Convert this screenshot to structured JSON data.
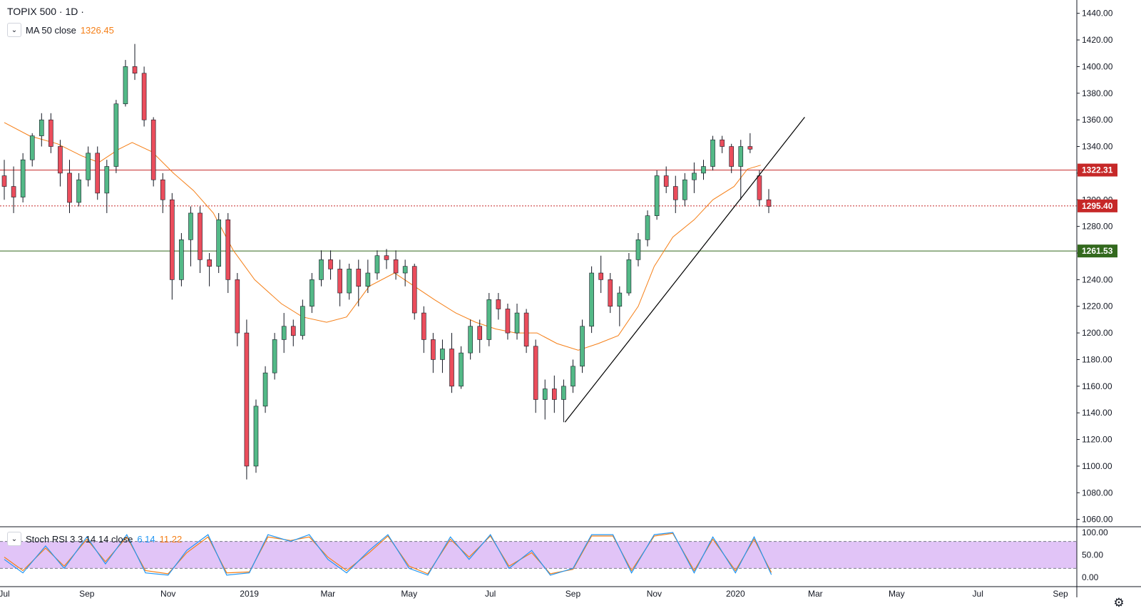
{
  "header": {
    "title": "TOPIX 500 · 1D ·",
    "ma_label": "MA 50 close",
    "ma_value": "1326.45",
    "stoch_label": "Stoch RSI 3 3 14 14 close",
    "stoch_k": "6.14",
    "stoch_d": "11.22"
  },
  "colors": {
    "up": "#53b987",
    "down": "#eb4d5c",
    "ma": "#f57f17",
    "resistance": "#c62828",
    "support": "#33691e",
    "trend": "#000000",
    "stoch_k": "#2196f3",
    "stoch_d": "#f57f17",
    "stoch_band": "#e1c4f7"
  },
  "icons": {
    "collapse": "chevron-down-icon",
    "settings": "gear-icon"
  },
  "chart_data": {
    "type": "candlestick",
    "symbol": "TOPIX 500",
    "interval": "1D",
    "price_ylim": [
      1055,
      1450
    ],
    "price_ticks": [
      "1060.00",
      "1080.00",
      "1100.00",
      "1120.00",
      "1140.00",
      "1160.00",
      "1180.00",
      "1200.00",
      "1220.00",
      "1240.00",
      "1260.00",
      "1280.00",
      "1300.00",
      "1320.00",
      "1340.00",
      "1360.00",
      "1380.00",
      "1400.00",
      "1420.00",
      "1440.00"
    ],
    "x_ticks": [
      "Jul",
      "Sep",
      "Nov",
      "2019",
      "Mar",
      "May",
      "Jul",
      "Sep",
      "Nov",
      "2020",
      "Mar",
      "May",
      "Jul",
      "Sep"
    ],
    "horizontal_lines": [
      {
        "price": 1322.31,
        "label": "1322.31",
        "style": "solid",
        "color": "#c62828"
      },
      {
        "price": 1295.4,
        "label": "1295.40",
        "style": "dotted",
        "color": "#c62828"
      },
      {
        "price": 1261.53,
        "label": "1261.53",
        "style": "solid",
        "color": "#33691e"
      }
    ],
    "trendline": {
      "from": {
        "date": "2019-08-26",
        "price": 1133
      },
      "to": {
        "date": "2020-02-22",
        "price": 1362
      }
    },
    "ma_path": [
      [
        "2018-07-01",
        1358
      ],
      [
        "2018-07-20",
        1348
      ],
      [
        "2018-08-10",
        1342
      ],
      [
        "2018-08-28",
        1333
      ],
      [
        "2018-09-10",
        1328
      ],
      [
        "2018-09-25",
        1338
      ],
      [
        "2018-10-05",
        1343
      ],
      [
        "2018-10-20",
        1336
      ],
      [
        "2018-11-05",
        1320
      ],
      [
        "2018-11-20",
        1307
      ],
      [
        "2018-12-05",
        1290
      ],
      [
        "2018-12-20",
        1262
      ],
      [
        "2019-01-05",
        1240
      ],
      [
        "2019-01-25",
        1222
      ],
      [
        "2019-02-10",
        1212
      ],
      [
        "2019-02-28",
        1208
      ],
      [
        "2019-03-15",
        1212
      ],
      [
        "2019-04-01",
        1235
      ],
      [
        "2019-04-20",
        1245
      ],
      [
        "2019-05-05",
        1235
      ],
      [
        "2019-05-20",
        1225
      ],
      [
        "2019-06-05",
        1215
      ],
      [
        "2019-06-20",
        1208
      ],
      [
        "2019-07-05",
        1203
      ],
      [
        "2019-07-20",
        1200
      ],
      [
        "2019-08-05",
        1200
      ],
      [
        "2019-08-20",
        1192
      ],
      [
        "2019-09-05",
        1187
      ],
      [
        "2019-09-20",
        1192
      ],
      [
        "2019-10-05",
        1198
      ],
      [
        "2019-10-20",
        1220
      ],
      [
        "2019-11-01",
        1250
      ],
      [
        "2019-11-15",
        1272
      ],
      [
        "2019-12-01",
        1285
      ],
      [
        "2019-12-15",
        1300
      ],
      [
        "2019-12-31",
        1310
      ],
      [
        "2020-01-10",
        1323
      ],
      [
        "2020-01-20",
        1326
      ]
    ],
    "candles": [
      [
        "2018-07-01",
        1318,
        1330,
        1300,
        1310
      ],
      [
        "2018-07-08",
        1310,
        1325,
        1290,
        1302
      ],
      [
        "2018-07-15",
        1302,
        1335,
        1298,
        1330
      ],
      [
        "2018-07-22",
        1330,
        1350,
        1325,
        1348
      ],
      [
        "2018-07-29",
        1348,
        1365,
        1340,
        1360
      ],
      [
        "2018-08-05",
        1360,
        1365,
        1335,
        1340
      ],
      [
        "2018-08-12",
        1340,
        1345,
        1310,
        1320
      ],
      [
        "2018-08-19",
        1320,
        1330,
        1290,
        1298
      ],
      [
        "2018-08-26",
        1298,
        1320,
        1295,
        1315
      ],
      [
        "2018-09-02",
        1315,
        1340,
        1310,
        1335
      ],
      [
        "2018-09-09",
        1335,
        1340,
        1300,
        1305
      ],
      [
        "2018-09-16",
        1305,
        1330,
        1290,
        1325
      ],
      [
        "2018-09-23",
        1325,
        1375,
        1320,
        1372
      ],
      [
        "2018-09-30",
        1372,
        1405,
        1370,
        1400
      ],
      [
        "2018-10-07",
        1400,
        1417,
        1390,
        1395
      ],
      [
        "2018-10-14",
        1395,
        1400,
        1355,
        1360
      ],
      [
        "2018-10-21",
        1360,
        1362,
        1310,
        1315
      ],
      [
        "2018-10-28",
        1315,
        1320,
        1290,
        1300
      ],
      [
        "2018-11-04",
        1300,
        1305,
        1225,
        1240
      ],
      [
        "2018-11-11",
        1240,
        1275,
        1235,
        1270
      ],
      [
        "2018-11-18",
        1270,
        1295,
        1250,
        1290
      ],
      [
        "2018-11-25",
        1290,
        1295,
        1245,
        1255
      ],
      [
        "2018-12-02",
        1255,
        1260,
        1235,
        1250
      ],
      [
        "2018-12-09",
        1250,
        1290,
        1245,
        1285
      ],
      [
        "2018-12-16",
        1285,
        1290,
        1230,
        1240
      ],
      [
        "2018-12-23",
        1240,
        1245,
        1190,
        1200
      ],
      [
        "2018-12-30",
        1200,
        1210,
        1090,
        1100
      ],
      [
        "2019-01-06",
        1100,
        1150,
        1095,
        1145
      ],
      [
        "2019-01-13",
        1145,
        1175,
        1140,
        1170
      ],
      [
        "2019-01-20",
        1170,
        1200,
        1165,
        1195
      ],
      [
        "2019-01-27",
        1195,
        1215,
        1185,
        1205
      ],
      [
        "2019-02-03",
        1205,
        1210,
        1190,
        1198
      ],
      [
        "2019-02-10",
        1198,
        1225,
        1195,
        1220
      ],
      [
        "2019-02-17",
        1220,
        1245,
        1215,
        1240
      ],
      [
        "2019-02-24",
        1240,
        1262,
        1235,
        1255
      ],
      [
        "2019-03-03",
        1255,
        1262,
        1240,
        1248
      ],
      [
        "2019-03-10",
        1248,
        1255,
        1220,
        1230
      ],
      [
        "2019-03-17",
        1230,
        1252,
        1225,
        1248
      ],
      [
        "2019-03-24",
        1248,
        1255,
        1220,
        1235
      ],
      [
        "2019-03-31",
        1235,
        1255,
        1230,
        1245
      ],
      [
        "2019-04-07",
        1245,
        1262,
        1240,
        1258
      ],
      [
        "2019-04-14",
        1258,
        1263,
        1248,
        1255
      ],
      [
        "2019-04-21",
        1255,
        1262,
        1240,
        1245
      ],
      [
        "2019-04-28",
        1245,
        1255,
        1235,
        1250
      ],
      [
        "2019-05-05",
        1250,
        1252,
        1210,
        1215
      ],
      [
        "2019-05-12",
        1215,
        1220,
        1185,
        1195
      ],
      [
        "2019-05-19",
        1195,
        1200,
        1170,
        1180
      ],
      [
        "2019-05-26",
        1180,
        1195,
        1170,
        1188
      ],
      [
        "2019-06-02",
        1188,
        1200,
        1155,
        1160
      ],
      [
        "2019-06-09",
        1160,
        1190,
        1158,
        1185
      ],
      [
        "2019-06-16",
        1185,
        1210,
        1180,
        1205
      ],
      [
        "2019-06-23",
        1205,
        1210,
        1185,
        1195
      ],
      [
        "2019-06-30",
        1195,
        1230,
        1190,
        1225
      ],
      [
        "2019-07-07",
        1225,
        1230,
        1210,
        1218
      ],
      [
        "2019-07-14",
        1218,
        1222,
        1195,
        1200
      ],
      [
        "2019-07-21",
        1200,
        1222,
        1195,
        1215
      ],
      [
        "2019-07-28",
        1215,
        1218,
        1185,
        1190
      ],
      [
        "2019-08-04",
        1190,
        1195,
        1140,
        1150
      ],
      [
        "2019-08-11",
        1150,
        1165,
        1135,
        1158
      ],
      [
        "2019-08-18",
        1158,
        1168,
        1140,
        1150
      ],
      [
        "2019-08-25",
        1150,
        1165,
        1133,
        1160
      ],
      [
        "2019-09-01",
        1160,
        1180,
        1155,
        1175
      ],
      [
        "2019-09-08",
        1175,
        1210,
        1170,
        1205
      ],
      [
        "2019-09-15",
        1205,
        1250,
        1200,
        1245
      ],
      [
        "2019-09-22",
        1245,
        1258,
        1230,
        1240
      ],
      [
        "2019-09-29",
        1240,
        1245,
        1215,
        1220
      ],
      [
        "2019-10-06",
        1220,
        1235,
        1205,
        1230
      ],
      [
        "2019-10-13",
        1230,
        1260,
        1228,
        1255
      ],
      [
        "2019-10-20",
        1255,
        1275,
        1250,
        1270
      ],
      [
        "2019-10-27",
        1270,
        1292,
        1265,
        1288
      ],
      [
        "2019-11-03",
        1288,
        1322,
        1285,
        1318
      ],
      [
        "2019-11-10",
        1318,
        1325,
        1305,
        1310
      ],
      [
        "2019-11-17",
        1310,
        1318,
        1290,
        1300
      ],
      [
        "2019-11-24",
        1300,
        1320,
        1295,
        1315
      ],
      [
        "2019-12-01",
        1315,
        1328,
        1305,
        1320
      ],
      [
        "2019-12-08",
        1320,
        1330,
        1315,
        1325
      ],
      [
        "2019-12-15",
        1325,
        1348,
        1322,
        1345
      ],
      [
        "2019-12-22",
        1345,
        1348,
        1335,
        1340
      ],
      [
        "2019-12-29",
        1340,
        1342,
        1320,
        1325
      ],
      [
        "2020-01-05",
        1325,
        1345,
        1300,
        1340
      ],
      [
        "2020-01-12",
        1340,
        1350,
        1335,
        1338
      ],
      [
        "2020-01-19",
        1318,
        1322,
        1295,
        1300
      ],
      [
        "2020-01-26",
        1300,
        1308,
        1290,
        1295
      ]
    ],
    "stoch_rsi": {
      "ylim": [
        0,
        100
      ],
      "ticks": [
        "0.00",
        "50.00",
        "100.00"
      ],
      "bands": [
        20,
        80
      ],
      "k_last": 6.14,
      "d_last": 11.22,
      "k": [
        [
          "2018-07-01",
          40
        ],
        [
          "2018-07-15",
          10
        ],
        [
          "2018-08-01",
          70
        ],
        [
          "2018-08-15",
          20
        ],
        [
          "2018-09-01",
          90
        ],
        [
          "2018-09-15",
          30
        ],
        [
          "2018-10-01",
          95
        ],
        [
          "2018-10-15",
          10
        ],
        [
          "2018-11-01",
          5
        ],
        [
          "2018-11-15",
          60
        ],
        [
          "2018-12-01",
          95
        ],
        [
          "2018-12-15",
          5
        ],
        [
          "2019-01-01",
          10
        ],
        [
          "2019-01-15",
          95
        ],
        [
          "2019-02-01",
          80
        ],
        [
          "2019-02-15",
          95
        ],
        [
          "2019-03-01",
          40
        ],
        [
          "2019-03-15",
          10
        ],
        [
          "2019-04-01",
          60
        ],
        [
          "2019-04-15",
          95
        ],
        [
          "2019-05-01",
          20
        ],
        [
          "2019-05-15",
          5
        ],
        [
          "2019-06-01",
          90
        ],
        [
          "2019-06-15",
          40
        ],
        [
          "2019-07-01",
          95
        ],
        [
          "2019-07-15",
          20
        ],
        [
          "2019-08-01",
          60
        ],
        [
          "2019-08-15",
          5
        ],
        [
          "2019-09-01",
          20
        ],
        [
          "2019-09-15",
          95
        ],
        [
          "2019-10-01",
          95
        ],
        [
          "2019-10-15",
          10
        ],
        [
          "2019-11-01",
          95
        ],
        [
          "2019-11-15",
          100
        ],
        [
          "2019-12-01",
          10
        ],
        [
          "2019-12-15",
          90
        ],
        [
          "2020-01-01",
          10
        ],
        [
          "2020-01-15",
          90
        ],
        [
          "2020-01-28",
          6
        ]
      ],
      "d": [
        [
          "2018-07-01",
          45
        ],
        [
          "2018-07-15",
          15
        ],
        [
          "2018-08-01",
          65
        ],
        [
          "2018-08-15",
          25
        ],
        [
          "2018-09-01",
          85
        ],
        [
          "2018-09-15",
          35
        ],
        [
          "2018-10-01",
          90
        ],
        [
          "2018-10-15",
          15
        ],
        [
          "2018-11-01",
          8
        ],
        [
          "2018-11-15",
          55
        ],
        [
          "2018-12-01",
          90
        ],
        [
          "2018-12-15",
          10
        ],
        [
          "2019-01-01",
          12
        ],
        [
          "2019-01-15",
          90
        ],
        [
          "2019-02-01",
          82
        ],
        [
          "2019-02-15",
          90
        ],
        [
          "2019-03-01",
          45
        ],
        [
          "2019-03-15",
          15
        ],
        [
          "2019-04-01",
          55
        ],
        [
          "2019-04-15",
          92
        ],
        [
          "2019-05-01",
          25
        ],
        [
          "2019-05-15",
          8
        ],
        [
          "2019-06-01",
          85
        ],
        [
          "2019-06-15",
          45
        ],
        [
          "2019-07-01",
          92
        ],
        [
          "2019-07-15",
          25
        ],
        [
          "2019-08-01",
          55
        ],
        [
          "2019-08-15",
          8
        ],
        [
          "2019-09-01",
          18
        ],
        [
          "2019-09-15",
          92
        ],
        [
          "2019-10-01",
          92
        ],
        [
          "2019-10-15",
          15
        ],
        [
          "2019-11-01",
          92
        ],
        [
          "2019-11-15",
          98
        ],
        [
          "2019-12-01",
          15
        ],
        [
          "2019-12-15",
          85
        ],
        [
          "2020-01-01",
          15
        ],
        [
          "2020-01-15",
          85
        ],
        [
          "2020-01-28",
          11
        ]
      ]
    }
  }
}
